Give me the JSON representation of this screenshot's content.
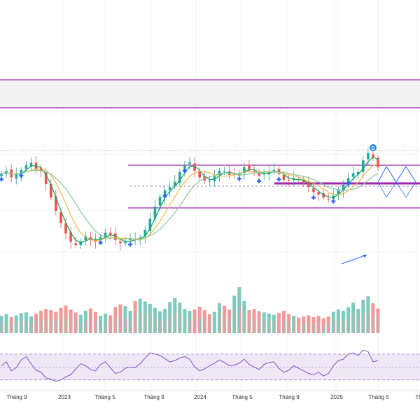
{
  "chart_data": {
    "type": "line",
    "title": "",
    "x_axis": {
      "tick_labels": [
        "Tháng 9",
        "2023",
        "Tháng 5",
        "Tháng 9",
        "2024",
        "Tháng 5",
        "Tháng 9",
        "2025",
        "Tháng 5",
        "Th"
      ]
    },
    "price": {
      "series": [
        {
          "role": "close",
          "color": "#26a69a / #ef5350",
          "values": [
            31.0,
            31.5,
            30.4,
            30.9,
            31.6,
            32.4,
            32.8,
            31.8,
            31.4,
            29.3,
            27.1,
            24.9,
            22.9,
            21.2,
            19.8,
            19.3,
            19.9,
            20.8,
            20.1,
            19.8,
            20.6,
            21.3,
            21.0,
            20.1,
            19.6,
            19.9,
            20.3,
            20.2,
            20.5,
            21.8,
            23.6,
            25.6,
            27.2,
            28.3,
            28.8,
            29.7,
            31.3,
            32.4,
            32.9,
            31.5,
            30.4,
            29.9,
            29.8,
            30.6,
            31.5,
            31.4,
            30.8,
            30.9,
            31.1,
            32.1,
            31.7,
            31.3,
            30.7,
            31.1,
            31.4,
            31.6,
            31.0,
            30.0,
            29.9,
            30.3,
            30.0,
            29.5,
            28.8,
            28.0,
            27.6,
            27.1,
            26.9,
            27.4,
            28.4,
            29.2,
            30.3,
            31.1,
            31.3,
            33.2,
            34.4,
            33.6,
            32.1
          ]
        }
      ],
      "moving_averages": [
        {
          "name": "",
          "color": "#0fa55a"
        },
        {
          "name": "",
          "color": "#f2b84b"
        },
        {
          "name": "",
          "color": "#86c79e"
        }
      ],
      "markers": {
        "buy_signals": 12,
        "top_label": "D"
      },
      "zones": {
        "upper_band": "gray",
        "trading_range": "purple"
      }
    },
    "volume": {
      "series": "histogram",
      "colors": [
        "#26a69a",
        "#ef5350"
      ],
      "values": [
        3.0,
        3.3,
        2.8,
        3.1,
        3.5,
        3.6,
        2.9,
        3.4,
        3.9,
        4.2,
        4.0,
        3.7,
        4.4,
        4.8,
        4.1,
        3.6,
        3.2,
        3.9,
        4.3,
        3.7,
        3.0,
        3.4,
        3.1,
        4.5,
        5.0,
        4.7,
        3.9,
        5.6,
        6.0,
        5.5,
        5.1,
        4.4,
        3.8,
        4.2,
        5.4,
        6.1,
        5.3,
        4.2,
        3.9,
        4.1,
        4.6,
        4.0,
        3.3,
        3.7,
        5.2,
        4.8,
        4.1,
        6.5,
        8.0,
        5.6,
        4.0,
        4.2,
        3.8,
        3.6,
        3.4,
        3.2,
        3.5,
        3.9,
        3.3,
        3.0,
        2.7,
        2.9,
        3.1,
        2.8,
        3.0,
        2.6,
        2.9,
        3.7,
        4.1,
        3.9,
        4.5,
        5.3,
        4.2,
        5.8,
        6.4,
        5.2,
        4.3
      ]
    },
    "rsi": {
      "color": "#7e57c2",
      "band": [
        30,
        70
      ],
      "values": [
        52,
        58,
        44,
        49,
        61,
        66,
        55,
        45,
        42,
        33,
        31,
        28,
        30,
        35,
        38,
        47,
        55,
        52,
        46,
        44,
        54,
        58,
        49,
        40,
        42,
        48,
        50,
        49,
        55,
        64,
        72,
        70,
        68,
        63,
        58,
        60,
        64,
        66,
        62,
        50,
        44,
        47,
        52,
        56,
        61,
        57,
        52,
        53,
        56,
        62,
        54,
        50,
        46,
        54,
        57,
        58,
        48,
        42,
        45,
        52,
        48,
        44,
        40,
        38,
        42,
        36,
        40,
        52,
        60,
        62,
        70,
        72,
        68,
        76,
        74,
        58,
        60
      ]
    }
  }
}
